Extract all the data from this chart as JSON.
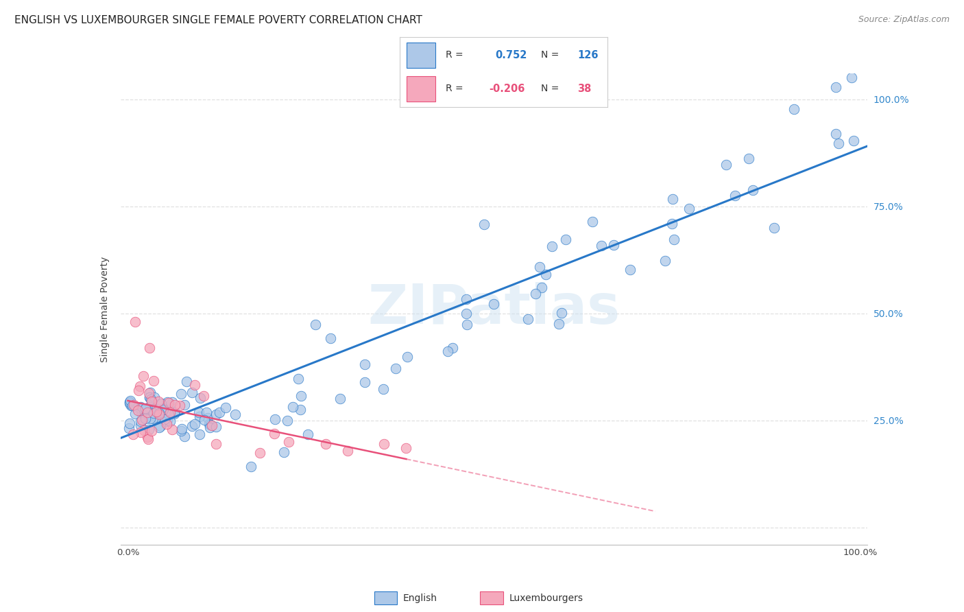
{
  "title": "ENGLISH VS LUXEMBOURGER SINGLE FEMALE POVERTY CORRELATION CHART",
  "source": "Source: ZipAtlas.com",
  "ylabel": "Single Female Poverty",
  "legend_english": "English",
  "legend_luxembourgers": "Luxembourgers",
  "r_english": 0.752,
  "n_english": 126,
  "r_luxembourgers": -0.206,
  "n_luxembourgers": 38,
  "english_color": "#adc8e8",
  "luxembourger_color": "#f5a8bc",
  "english_line_color": "#2878c8",
  "luxembourger_line_color": "#e8507a",
  "watermark": "ZIPatlas",
  "watermark_color": "#c8dff0",
  "background_color": "#ffffff",
  "grid_color": "#e0e0e0",
  "right_axis_color": "#3388cc",
  "title_fontsize": 11,
  "source_fontsize": 9,
  "xlim": [
    0.0,
    1.0
  ],
  "ylim": [
    0.0,
    1.05
  ],
  "x_ticks": [
    0.0,
    0.1,
    0.2,
    0.3,
    0.4,
    0.5,
    0.6,
    0.7,
    0.8,
    0.9,
    1.0
  ],
  "y_ticks": [
    0.0,
    0.25,
    0.5,
    0.75,
    1.0
  ],
  "y_tick_labels": [
    "",
    "25.0%",
    "50.0%",
    "75.0%",
    "100.0%"
  ]
}
